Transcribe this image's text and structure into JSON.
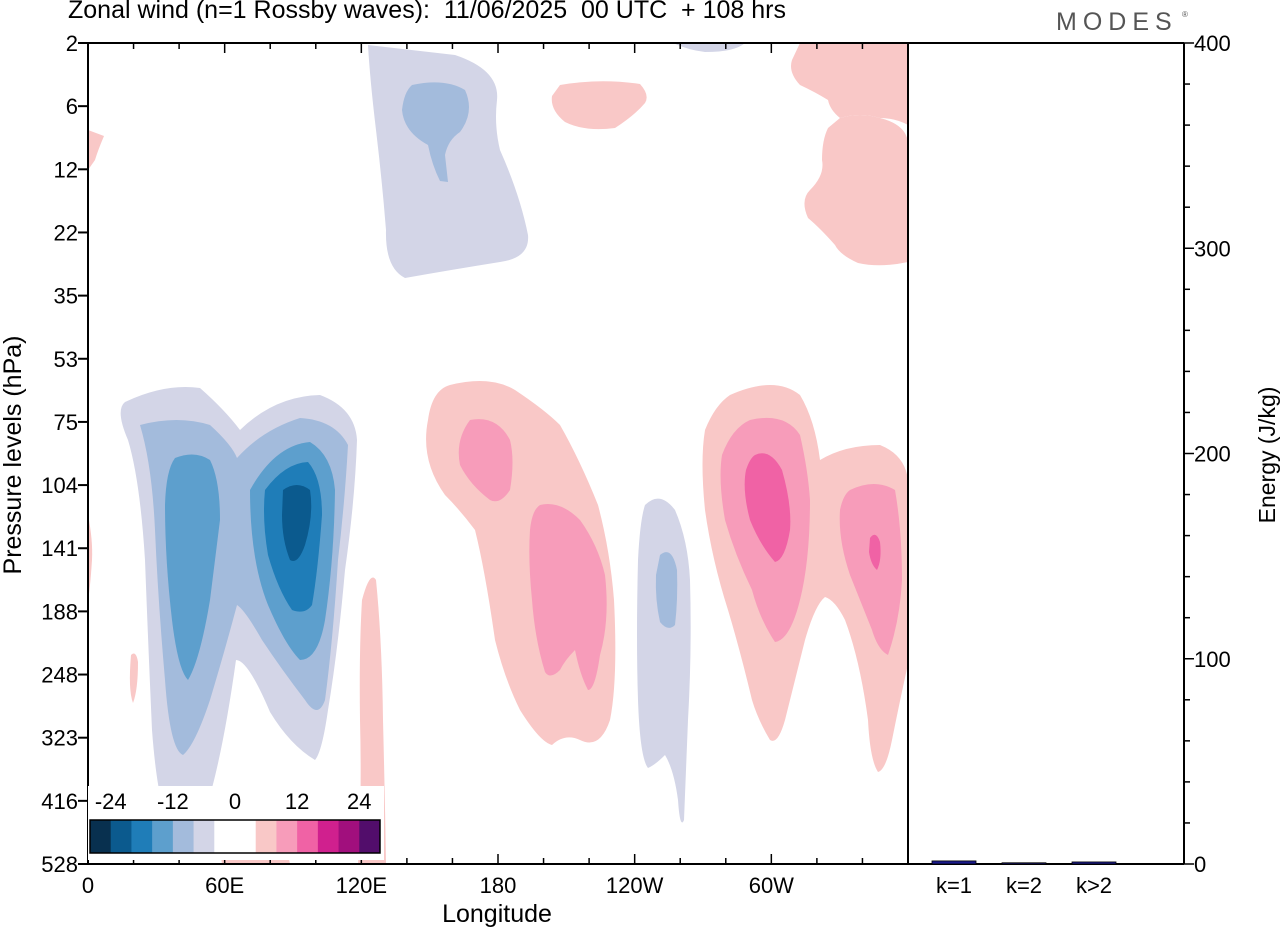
{
  "title": "Zonal wind (n=1 Rossby waves):  11/06/2025  00 UTC  + 108 hrs",
  "brand": "MODES",
  "brand_mark": "®",
  "colors": {
    "levels": [
      "#08304f",
      "#0b5a8e",
      "#1f7db8",
      "#5d9fcd",
      "#a3bbdc",
      "#d3d5e7",
      "#ffffff",
      "#ffffff",
      "#f9c8c7",
      "#f79cba",
      "#f062a5",
      "#d0208e",
      "#a10f7d",
      "#520d6b"
    ]
  },
  "chart_data": [
    {
      "type": "heatmap",
      "title": "Zonal wind (n=1 Rossby waves):  11/06/2025  00 UTC  + 108 hrs",
      "xlabel": "Longitude",
      "ylabel": "Pressure levels (hPa)",
      "x_ticks": [
        "0",
        "60E",
        "120E",
        "180",
        "120W",
        "60W"
      ],
      "y_ticks": [
        "2",
        "6",
        "12",
        "22",
        "35",
        "53",
        "75",
        "104",
        "141",
        "188",
        "248",
        "323",
        "416",
        "528"
      ],
      "y_scale": "log",
      "y_reversed": true,
      "colorbar": {
        "labels": [
          "-24",
          "-12",
          "0",
          "12",
          "24"
        ],
        "levels": [
          -30,
          -25,
          -20,
          -15,
          -10,
          -5,
          0,
          5,
          10,
          15,
          20,
          25,
          30
        ]
      },
      "features": [
        {
          "lon_range": [
            15,
            120
          ],
          "p_range": [
            75,
            430
          ],
          "sign": "negative",
          "min": -25,
          "note": "easterly wave pair, cores near 45E and 95E at ~104-188 hPa"
        },
        {
          "lon_range": [
            150,
            235
          ],
          "p_range": [
            70,
            330
          ],
          "sign": "positive",
          "max": 15
        },
        {
          "lon_range": [
            240,
            265
          ],
          "p_range": [
            100,
            430
          ],
          "sign": "negative",
          "min": -10
        },
        {
          "lon_range": [
            270,
            360
          ],
          "p_range": [
            70,
            400
          ],
          "sign": "positive",
          "max": 20
        },
        {
          "lon_range": [
            125,
            195
          ],
          "p_range": [
            2,
            28
          ],
          "sign": "negative",
          "min": -10
        },
        {
          "lon_range": [
            310,
            360
          ],
          "p_range": [
            2,
            30
          ],
          "sign": "positive",
          "max": 5
        }
      ]
    },
    {
      "type": "bar",
      "categories": [
        "k=1",
        "k=2",
        "k>2"
      ],
      "values": [
        1.5,
        0.6,
        1.0
      ],
      "ylabel": "Energy (J/kg)",
      "ylim": [
        0,
        400
      ],
      "y_ticks": [
        "0",
        "100",
        "200",
        "300",
        "400"
      ],
      "bar_color": "#1a1a8c"
    }
  ]
}
